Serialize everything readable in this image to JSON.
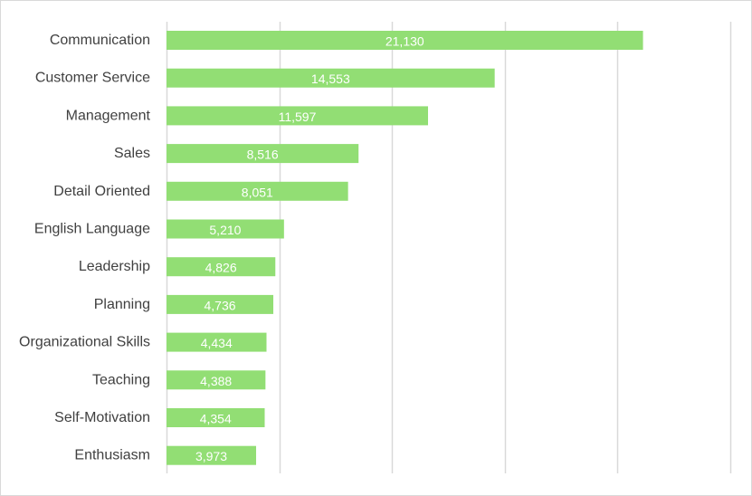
{
  "chart_data": {
    "type": "bar",
    "orientation": "horizontal",
    "categories": [
      "Communication",
      "Customer Service",
      "Management",
      "Sales",
      "Detail Oriented",
      "English Language",
      "Leadership",
      "Planning",
      "Organizational Skills",
      "Teaching",
      "Self-Motivation",
      "Enthusiasm"
    ],
    "values": [
      21130,
      14553,
      11597,
      8516,
      8051,
      5210,
      4826,
      4736,
      4434,
      4388,
      4354,
      3973
    ],
    "value_labels": [
      "21,130",
      "14,553",
      "11,597",
      "8,516",
      "8,051",
      "5,210",
      "4,826",
      "4,736",
      "4,434",
      "4,388",
      "4,354",
      "3,973"
    ],
    "xlim": [
      0,
      25000
    ],
    "x_gridline_step": 5000,
    "x_tick_labels_visible": false,
    "grid": true,
    "legend": "none",
    "bar_color": "#92de74",
    "gridline_color": "#d9d9d9",
    "label_color": "#404040",
    "data_label_color": "#ffffff",
    "title": "",
    "xlabel": "",
    "ylabel": ""
  }
}
